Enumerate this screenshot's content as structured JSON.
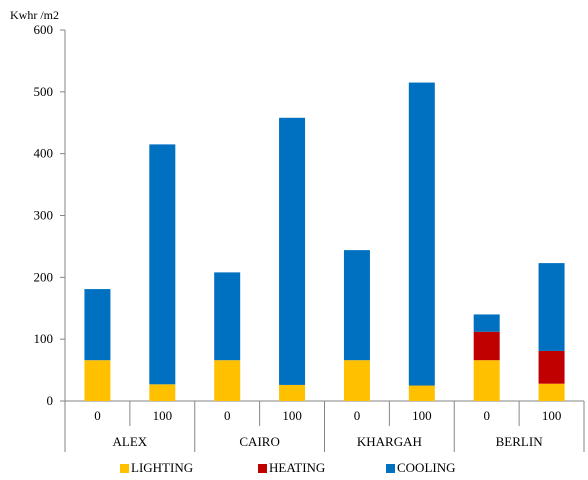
{
  "chart_data": {
    "type": "bar",
    "stacked": true,
    "ylabel": "Kwhr /m2",
    "ylim": [
      0,
      600
    ],
    "yticks": [
      0,
      100,
      200,
      300,
      400,
      500,
      600
    ],
    "grid": false,
    "legend_position": "bottom",
    "groups": [
      "ALEX",
      "CAIRO",
      "KHARGAH",
      "BERLIN"
    ],
    "categories": [
      "0",
      "100",
      "0",
      "100",
      "0",
      "100",
      "0",
      "100"
    ],
    "series": [
      {
        "name": "LIGHTING",
        "color": "#FFC000",
        "values": [
          66,
          27,
          66,
          26,
          66,
          25,
          66,
          28
        ]
      },
      {
        "name": "HEATING",
        "color": "#C00000",
        "values": [
          0,
          0,
          0,
          0,
          0,
          0,
          46,
          53
        ]
      },
      {
        "name": "COOLING",
        "color": "#0070C0",
        "values": [
          115,
          388,
          142,
          432,
          178,
          490,
          28,
          142
        ]
      }
    ]
  }
}
